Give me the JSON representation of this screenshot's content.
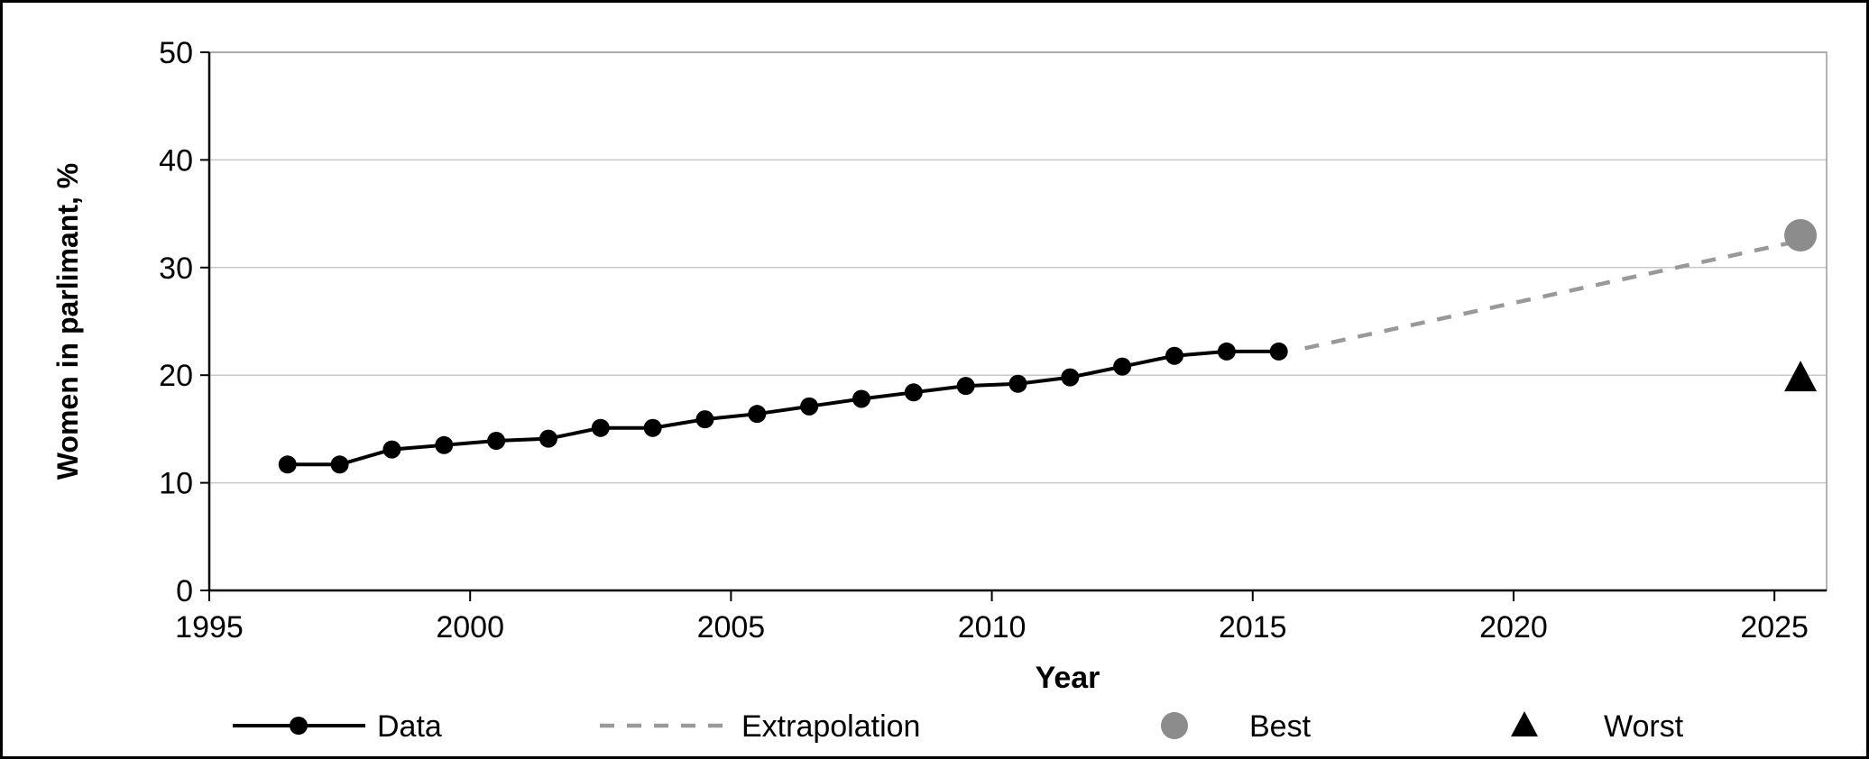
{
  "chart_data": {
    "type": "line",
    "xlabel": "Year",
    "ylabel": "Women in parlimant, %",
    "xlim": [
      1995,
      2026
    ],
    "ylim": [
      0,
      50
    ],
    "x_ticks": [
      "1995",
      "2000",
      "2005",
      "2010",
      "2015",
      "2020",
      "2025"
    ],
    "y_ticks": [
      "0",
      "10",
      "20",
      "30",
      "40",
      "50"
    ],
    "grid": "horizontal",
    "legend_position": "bottom",
    "series": [
      {
        "name": "Data",
        "style": "solid-line-with-markers",
        "color": "#000000",
        "x": [
          1996.5,
          1997.5,
          1998.5,
          1999.5,
          2000.5,
          2001.5,
          2002.5,
          2003.5,
          2004.5,
          2005.5,
          2006.5,
          2007.5,
          2008.5,
          2009.5,
          2010.5,
          2011.5,
          2012.5,
          2013.5,
          2014.5,
          2015.5
        ],
        "y": [
          11.7,
          11.7,
          13.1,
          13.5,
          13.9,
          14.1,
          15.1,
          15.1,
          15.9,
          16.4,
          17.1,
          17.8,
          18.4,
          19.0,
          19.2,
          19.8,
          20.8,
          21.8,
          22.2,
          22.2
        ]
      },
      {
        "name": "Extrapolation",
        "style": "dashed-line",
        "color": "#999999",
        "x": [
          2016.0,
          2025.5
        ],
        "y": [
          22.5,
          32.5
        ]
      },
      {
        "name": "Best",
        "style": "circle-marker",
        "color": "#8c8c8c",
        "x": [
          2025.5
        ],
        "y": [
          33.0
        ]
      },
      {
        "name": "Worst",
        "style": "triangle-marker",
        "color": "#000000",
        "x": [
          2025.5
        ],
        "y": [
          19.5
        ]
      }
    ]
  }
}
